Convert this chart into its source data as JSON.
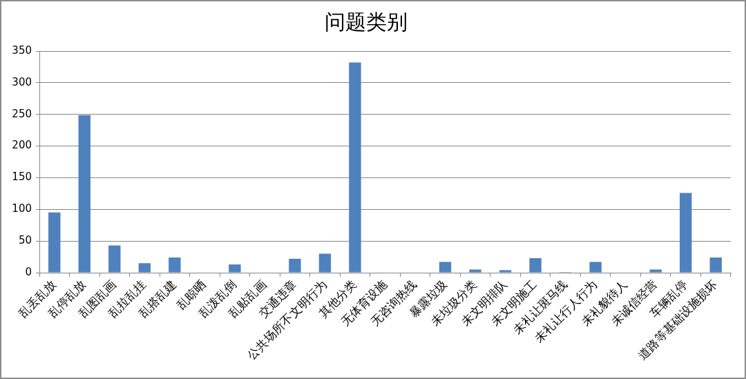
{
  "chart_data": {
    "type": "bar",
    "title": "问题类别",
    "categories": [
      "乱丢乱放",
      "乱停乱放",
      "乱图乱画",
      "乱拉乱挂",
      "乱搭乱建",
      "乱晾晒",
      "乱泼乱倒",
      "乱贴乱画",
      "交通违章",
      "公共场所不文明行为",
      "其他分类",
      "无体育设施",
      "无咨询热线",
      "暴露垃圾",
      "未垃圾分类",
      "未文明排队",
      "未文明施工",
      "未礼让斑马线",
      "未礼让行人行为",
      "未礼貌待人",
      "未诚信经营",
      "车辆乱停",
      "道路等基础设施损坏"
    ],
    "values": [
      95,
      249,
      43,
      15,
      24,
      0,
      13,
      0,
      22,
      30,
      332,
      0,
      0,
      17,
      5,
      4,
      23,
      1,
      17,
      0,
      5,
      126,
      24
    ],
    "color": "#4f81bd",
    "ylim": [
      0,
      350
    ],
    "yticks": [
      0,
      50,
      100,
      150,
      200,
      250,
      300,
      350
    ],
    "grid": "y"
  }
}
